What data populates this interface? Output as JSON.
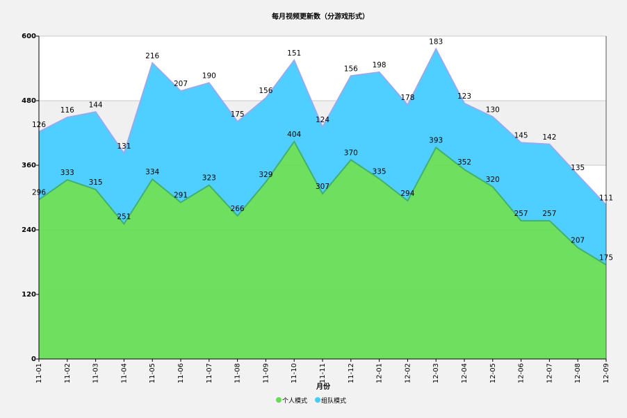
{
  "chart_data": {
    "type": "area",
    "stacked": true,
    "title": "每月视频更新数（分游戏形式）",
    "xlabel": "月份",
    "ylabel": "",
    "ylim": [
      0,
      600
    ],
    "yticks": [
      0,
      120,
      240,
      360,
      480,
      600
    ],
    "grid": true,
    "legend_position": "bottom",
    "categories": [
      "11-01",
      "11-02",
      "11-03",
      "11-04",
      "11-05",
      "11-06",
      "11-07",
      "11-08",
      "11-09",
      "11-10",
      "11-11",
      "11-12",
      "12-01",
      "12-02",
      "12-03",
      "12-04",
      "12-05",
      "12-06",
      "12-07",
      "12-08",
      "12-09"
    ],
    "series": [
      {
        "name": "个人模式",
        "color": "#66dd55",
        "values": [
          296,
          333,
          315,
          251,
          334,
          291,
          323,
          266,
          329,
          404,
          307,
          370,
          335,
          294,
          393,
          352,
          320,
          257,
          257,
          207,
          175
        ]
      },
      {
        "name": "组队模式",
        "color": "#44ccff",
        "values": [
          126,
          116,
          144,
          131,
          216,
          207,
          190,
          175,
          156,
          151,
          124,
          156,
          198,
          178,
          183,
          123,
          130,
          145,
          142,
          135,
          111
        ]
      }
    ]
  }
}
